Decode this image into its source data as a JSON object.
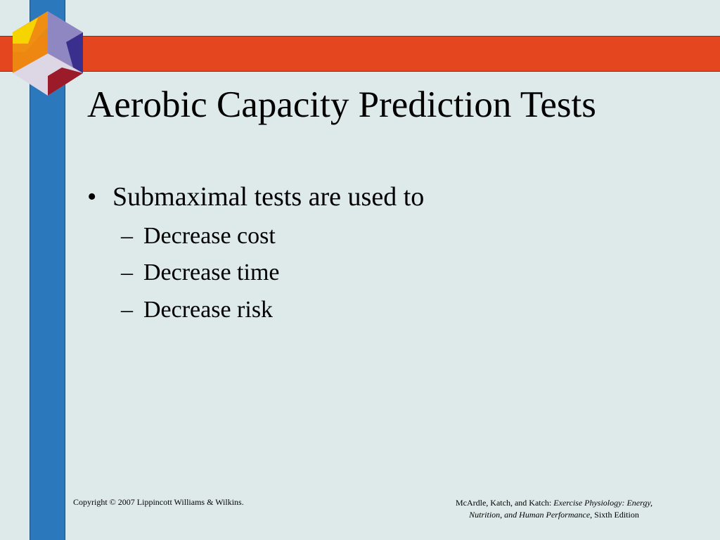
{
  "slide": {
    "title": "Aerobic Capacity Prediction Tests",
    "bullets": {
      "main": {
        "marker": "•",
        "text": "Submaximal tests are used to"
      },
      "sub_marker": "–",
      "sub": [
        "Decrease cost",
        "Decrease time",
        "Decrease risk"
      ]
    }
  },
  "footer": {
    "copyright": "Copyright © 2007 Lippincott Williams & Wilkins.",
    "citation_authors": "McArdle, Katch, and Katch:",
    "citation_title_line1": "Exercise Physiology: Energy,",
    "citation_title_line2": "Nutrition, and Human Performance,",
    "citation_edition": "Sixth Edition"
  },
  "colors": {
    "background": "#DDEAE9",
    "vertical_bar": "#2B78BD",
    "horizontal_bar": "#E44720",
    "logo_yellow": "#F5D400",
    "logo_orange": "#EE8A12",
    "logo_purple": "#8E87C2",
    "logo_darkblue": "#3A2F8C",
    "logo_red": "#9B1B2A",
    "logo_light": "#DDD6E4"
  },
  "icons": {
    "logo": "hexagon-cube-logo-icon"
  }
}
